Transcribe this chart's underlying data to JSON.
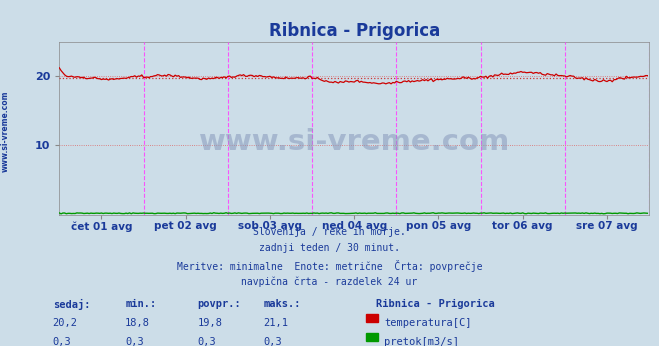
{
  "title": "Ribnica - Prigorica",
  "title_color": "#1a3a9a",
  "bg_color": "#ccdde8",
  "plot_bg_color": "#ccdde8",
  "fig_bg_color": "#ccdde8",
  "yticks": [
    10,
    20
  ],
  "ylim": [
    0,
    25
  ],
  "xlim": [
    0,
    336
  ],
  "temp_color": "#cc0000",
  "flow_color": "#009900",
  "avg_line_color": "#cc3333",
  "vline_color": "#ff44ff",
  "vline_positions": [
    48,
    96,
    144,
    192,
    240,
    288
  ],
  "vline_last": 336,
  "xtick_labels": [
    "čet 01 avg",
    "pet 02 avg",
    "sob 03 avg",
    "ned 04 avg",
    "pon 05 avg",
    "tor 06 avg",
    "sre 07 avg"
  ],
  "xtick_positions": [
    24,
    72,
    120,
    168,
    216,
    264,
    312
  ],
  "avg_temp": 19.8,
  "footer_lines": [
    "Slovenija / reke in morje.",
    "zadnji teden / 30 minut.",
    "Meritve: minimalne  Enote: metrične  Črta: povprečje",
    "navpična črta - razdelek 24 ur"
  ],
  "table_headers": [
    "sedaj:",
    "min.:",
    "povpr.:",
    "maks.:"
  ],
  "table_values_temp": [
    "20,2",
    "18,8",
    "19,8",
    "21,1"
  ],
  "table_values_flow": [
    "0,3",
    "0,3",
    "0,3",
    "0,3"
  ],
  "legend_title": "Ribnica - Prigorica",
  "legend_temp_label": "temperatura[C]",
  "legend_flow_label": "pretok[m3/s]",
  "text_color": "#1a3a9a",
  "watermark": "www.si-vreme.com",
  "watermark_color": "#8899bb",
  "sidebar_label": "www.si-vreme.com"
}
